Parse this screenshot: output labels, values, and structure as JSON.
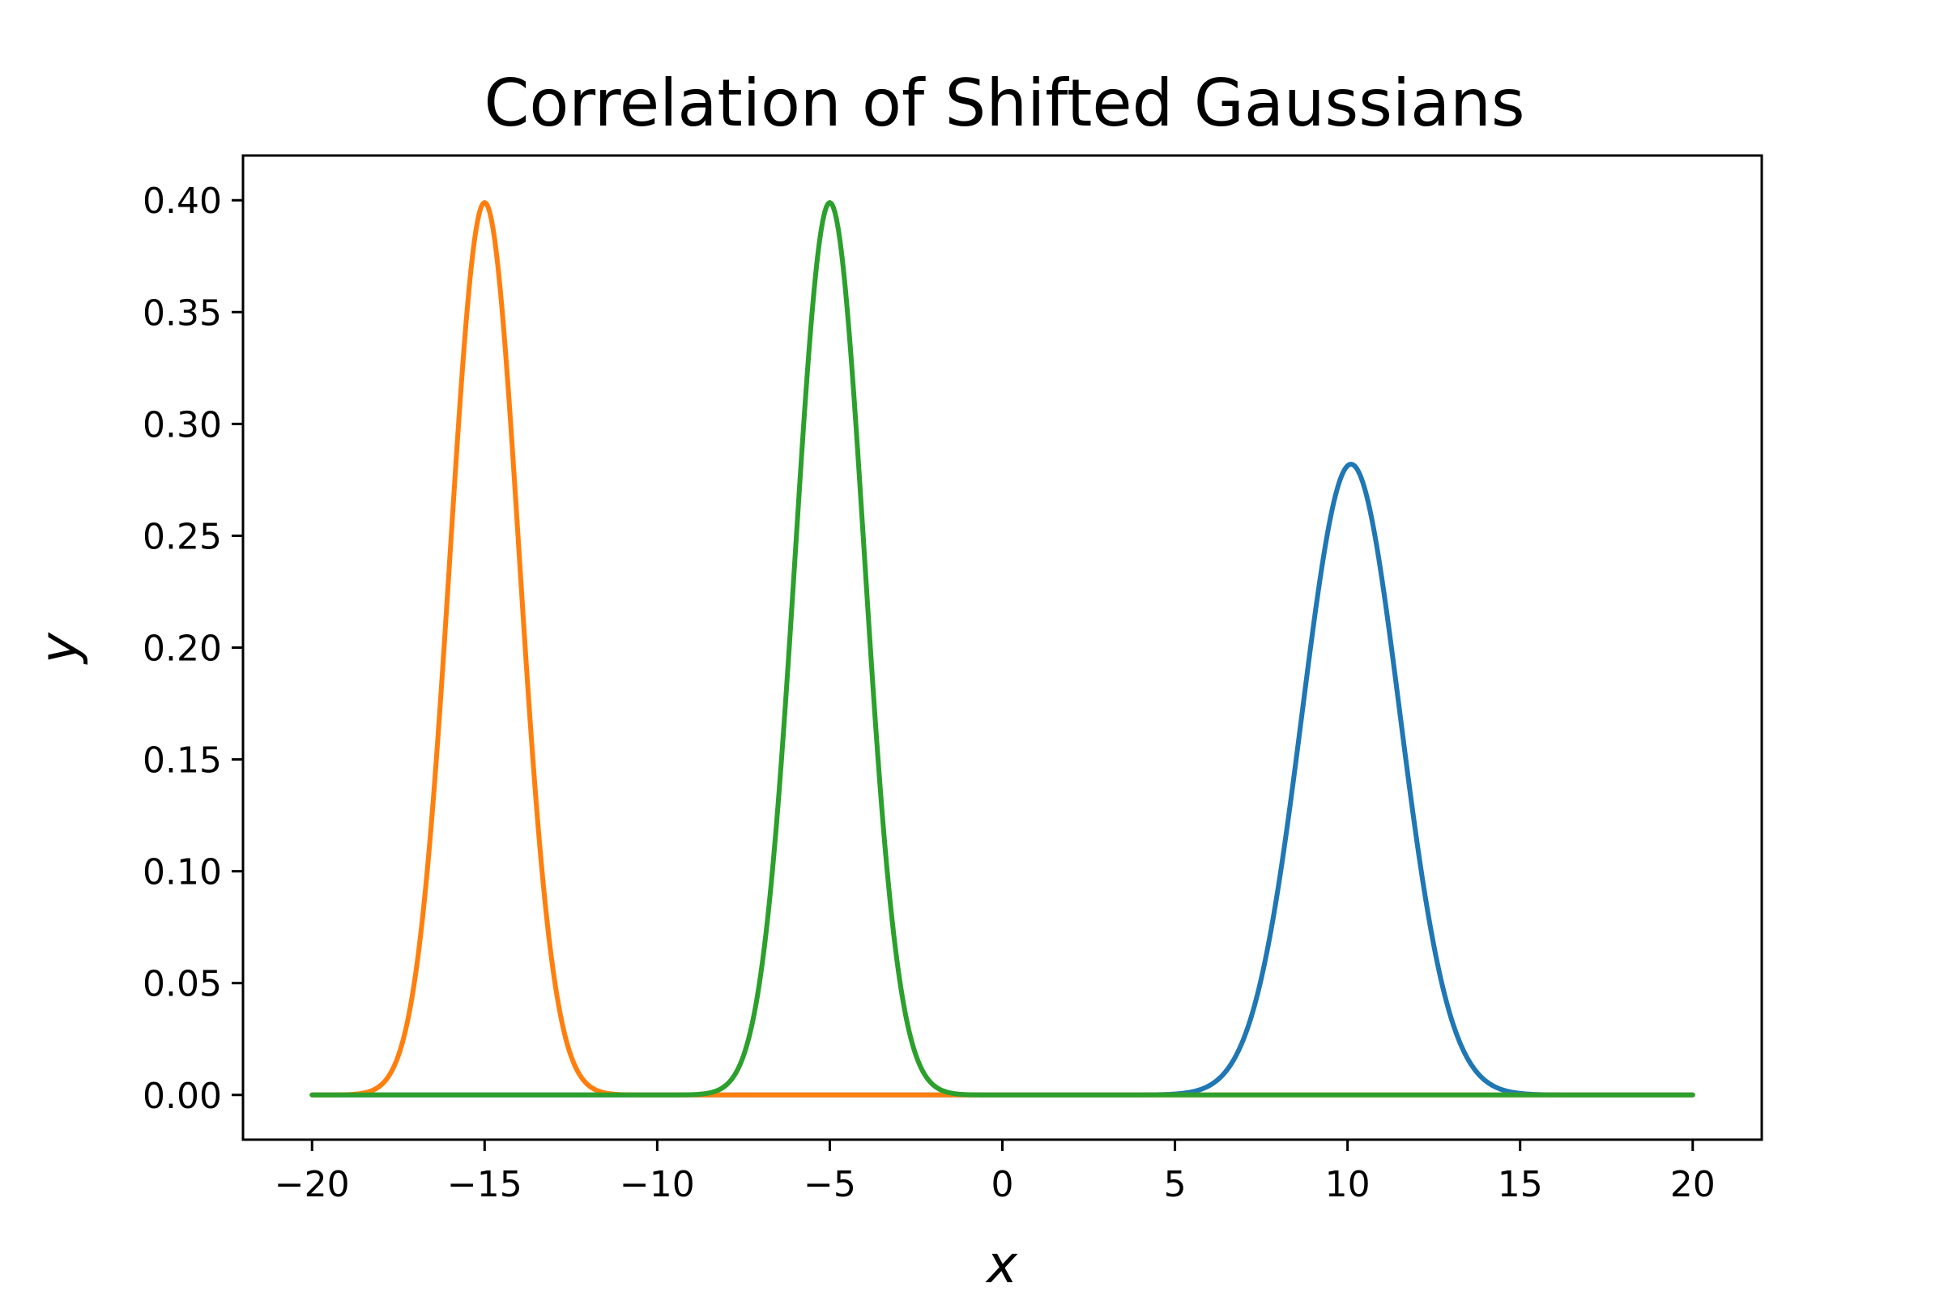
{
  "chart_data": {
    "type": "line",
    "title": "Correlation of Shifted Gaussians",
    "xlabel": "x",
    "ylabel": "y",
    "xlim": [
      -22,
      22
    ],
    "ylim": [
      -0.02,
      0.42
    ],
    "x_range": [
      -20,
      20
    ],
    "xticks": [
      -20,
      -15,
      -10,
      -5,
      0,
      5,
      10,
      15,
      20
    ],
    "xtick_labels": [
      "−20",
      "−15",
      "−10",
      "−5",
      "0",
      "5",
      "10",
      "15",
      "20"
    ],
    "yticks": [
      0.0,
      0.05,
      0.1,
      0.15,
      0.2,
      0.25,
      0.3,
      0.35,
      0.4
    ],
    "ytick_labels": [
      "0.00",
      "0.05",
      "0.10",
      "0.15",
      "0.20",
      "0.25",
      "0.30",
      "0.35",
      "0.40"
    ],
    "grid": false,
    "legend": "none",
    "series": [
      {
        "shape": "gaussian",
        "mean": 10.1,
        "std": 1.414,
        "peak": 0.282,
        "color": "#1f77b4"
      },
      {
        "shape": "gaussian",
        "mean": -15.0,
        "std": 1.0,
        "peak": 0.399,
        "color": "#ff7f0e"
      },
      {
        "shape": "gaussian",
        "mean": -5.0,
        "std": 1.0,
        "peak": 0.399,
        "color": "#2ca02c"
      }
    ]
  }
}
